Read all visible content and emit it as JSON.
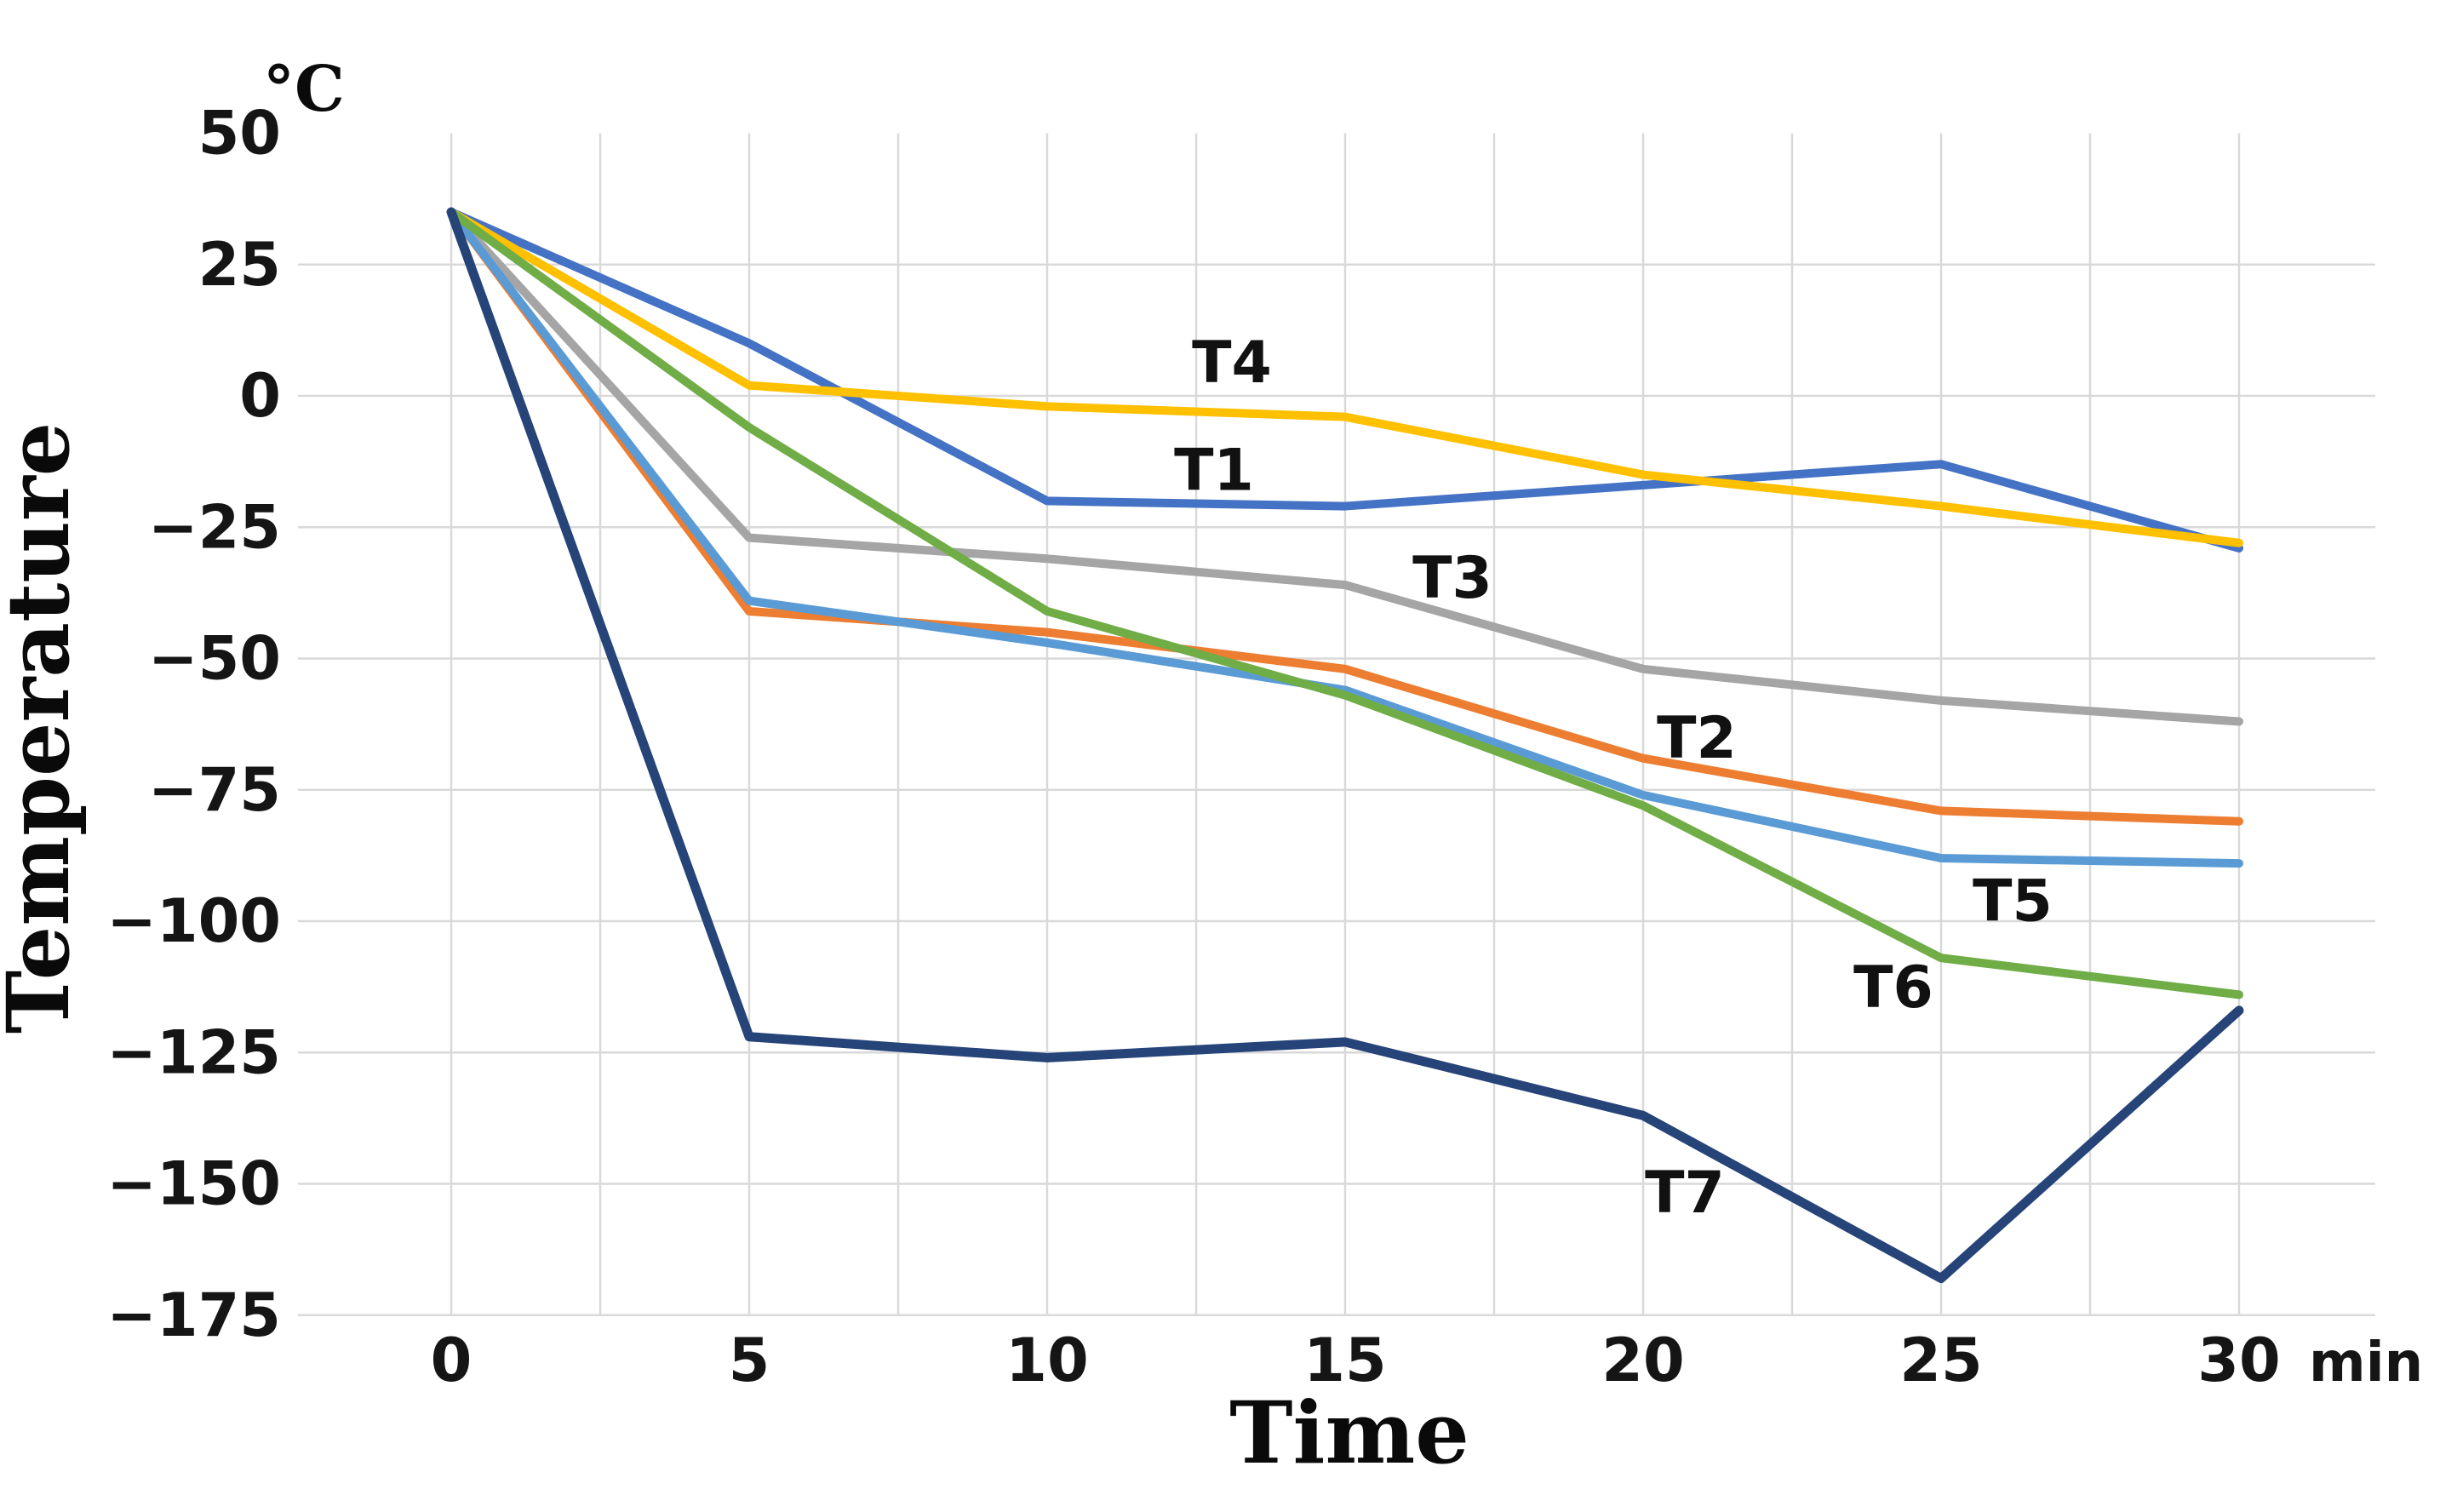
{
  "page": {
    "background": "#FFFFFF"
  },
  "chart_data": {
    "type": "line",
    "y_axis_unit_label": "°C",
    "y_axis_title": "Temperature",
    "x_axis_title": "Time",
    "x_axis_unit_label": "min",
    "x_minutes": [
      0,
      5,
      10,
      15,
      20,
      25,
      30
    ],
    "x_ticks": [
      {
        "label": "0",
        "value": 0
      },
      {
        "label": "5",
        "value": 5
      },
      {
        "label": "10",
        "value": 10
      },
      {
        "label": "15",
        "value": 15
      },
      {
        "label": "20",
        "value": 20
      },
      {
        "label": "25",
        "value": 25
      },
      {
        "label": "30",
        "value": 30
      }
    ],
    "y_ticks": [
      {
        "label": "50",
        "value": 50
      },
      {
        "label": "25",
        "value": 25
      },
      {
        "label": "0",
        "value": 0
      },
      {
        "label": "−25",
        "value": -25
      },
      {
        "label": "−50",
        "value": -50
      },
      {
        "label": "−75",
        "value": -75
      },
      {
        "label": "−100",
        "value": -100
      },
      {
        "label": "−125",
        "value": -125
      },
      {
        "label": "−150",
        "value": -150
      },
      {
        "label": "−175",
        "value": -175
      }
    ],
    "xlim": [
      0,
      30
    ],
    "ylim": [
      -175,
      50
    ],
    "grid": {
      "horizontal_step_deg": 25,
      "vertical_step_min": 2.5,
      "color": "#D9D9D9",
      "show_top_horizontal_line": false
    },
    "series": [
      {
        "name": "T1",
        "color": "#4472C4",
        "values": [
          35,
          10,
          -20,
          -21,
          -17,
          -13,
          -29
        ],
        "label_pos": {
          "t": 12.8,
          "temp": -14
        }
      },
      {
        "name": "T2",
        "color": "#ED7D31",
        "values": [
          35,
          -41,
          -45,
          -52,
          -69,
          -79,
          -81
        ],
        "label_pos": {
          "t": 20.9,
          "temp": -65
        }
      },
      {
        "name": "T3",
        "color": "#A5A5A5",
        "values": [
          35,
          -27,
          -31,
          -36,
          -52,
          -58,
          -62
        ],
        "label_pos": {
          "t": 16.8,
          "temp": -34.5
        }
      },
      {
        "name": "T4",
        "color": "#FFC000",
        "values": [
          35,
          2,
          -2,
          -4,
          -15,
          -21,
          -28
        ],
        "label_pos": {
          "t": 13.1,
          "temp": 6.5
        }
      },
      {
        "name": "T5",
        "color": "#5B9BD5",
        "values": [
          35,
          -39,
          -47,
          -56,
          -76,
          -88,
          -89
        ],
        "label_pos": {
          "t": 26.2,
          "temp": -96
        }
      },
      {
        "name": "T6",
        "color": "#70AD47",
        "values": [
          35,
          -6,
          -41,
          -57,
          -78,
          -107,
          -114
        ],
        "label_pos": {
          "t": 24.2,
          "temp": -112.5
        }
      },
      {
        "name": "T7",
        "color": "#264478",
        "values": [
          35,
          -122,
          -126,
          -123,
          -137,
          -168,
          -117
        ],
        "label_pos": {
          "t": 20.7,
          "temp": -151.5
        }
      }
    ]
  }
}
